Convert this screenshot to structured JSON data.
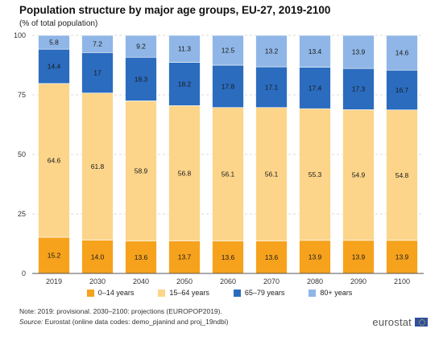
{
  "title": "Population structure by major age groups, EU-27, 2019-2100",
  "subtitle": "(% of total population)",
  "chart_data": {
    "type": "bar",
    "stacked": true,
    "categories": [
      "2019",
      "2030",
      "2040",
      "2050",
      "2060",
      "2070",
      "2080",
      "2090",
      "2100"
    ],
    "series": [
      {
        "name": "0–14 years",
        "color": "#f6a21c",
        "values": [
          15.2,
          14.0,
          13.6,
          13.7,
          13.6,
          13.6,
          13.9,
          13.9,
          13.9
        ],
        "labels": [
          "15.2",
          "14.0",
          "13.6",
          "13.7",
          "13.6",
          "13.6",
          "13.9",
          "13.9",
          "13.9"
        ]
      },
      {
        "name": "15–64 years",
        "color": "#fcd58b",
        "values": [
          64.6,
          61.8,
          58.9,
          56.8,
          56.1,
          56.1,
          55.3,
          54.9,
          54.8
        ],
        "labels": [
          "64.6",
          "61.8",
          "58.9",
          "56.8",
          "56.1",
          "56.1",
          "55.3",
          "54.9",
          "54.8"
        ]
      },
      {
        "name": "65–79 years",
        "color": "#2b6cbf",
        "values": [
          14.4,
          17.0,
          18.3,
          18.2,
          17.8,
          17.1,
          17.4,
          17.3,
          16.7
        ],
        "labels": [
          "14.4",
          "17",
          "18.3",
          "18.2",
          "17.8",
          "17.1",
          "17.4",
          "17.3",
          "16.7"
        ]
      },
      {
        "name": "80+ years",
        "color": "#8fb6e6",
        "values": [
          5.8,
          7.2,
          9.2,
          11.3,
          12.5,
          13.2,
          13.4,
          13.9,
          14.6
        ],
        "labels": [
          "5.8",
          "7.2",
          "9.2",
          "11.3",
          "12.5",
          "13.2",
          "13.4",
          "13.9",
          "14.6"
        ]
      }
    ],
    "ylim": [
      0,
      100
    ],
    "yticks": [
      0,
      25,
      50,
      75,
      100
    ],
    "grid": true,
    "legend_position": "bottom"
  },
  "note": "Note: 2019: provisional. 2030–2100: projections (EUROPOP2019).",
  "source_label": "Source:",
  "source_text": "Eurostat (online data codes: demo_pjanind and proj_19ndbi)",
  "logo_text": "eurostat"
}
